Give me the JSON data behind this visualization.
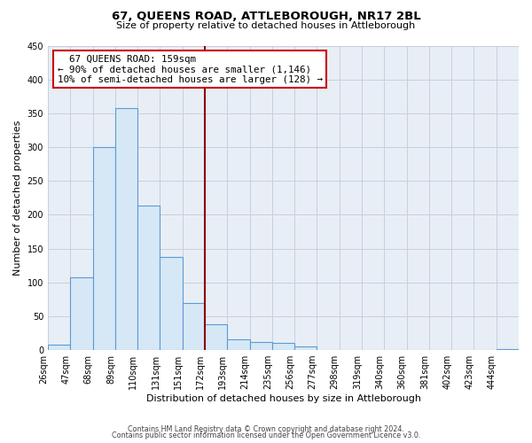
{
  "title": "67, QUEENS ROAD, ATTLEBOROUGH, NR17 2BL",
  "subtitle": "Size of property relative to detached houses in Attleborough",
  "xlabel": "Distribution of detached houses by size in Attleborough",
  "ylabel": "Number of detached properties",
  "footer_line1": "Contains HM Land Registry data © Crown copyright and database right 2024.",
  "footer_line2": "Contains public sector information licensed under the Open Government Licence v3.0.",
  "bin_labels": [
    "26sqm",
    "47sqm",
    "68sqm",
    "89sqm",
    "110sqm",
    "131sqm",
    "151sqm",
    "172sqm",
    "193sqm",
    "214sqm",
    "235sqm",
    "256sqm",
    "277sqm",
    "298sqm",
    "319sqm",
    "340sqm",
    "360sqm",
    "381sqm",
    "402sqm",
    "423sqm",
    "444sqm"
  ],
  "bar_heights": [
    8,
    108,
    300,
    358,
    214,
    138,
    70,
    38,
    16,
    12,
    10,
    5,
    0,
    0,
    0,
    0,
    0,
    0,
    0,
    0,
    2
  ],
  "bar_color": "#d6e8f5",
  "bar_edge_color": "#5b9bd5",
  "background_color": "#e8eef5",
  "vline_x": 7,
  "vline_color": "#8b0000",
  "annotation_title": "67 QUEENS ROAD: 159sqm",
  "annotation_line1": "← 90% of detached houses are smaller (1,146)",
  "annotation_line2": "10% of semi-detached houses are larger (128) →",
  "annotation_box_color": "#ffffff",
  "annotation_box_edgecolor": "#cc0000",
  "ylim": [
    0,
    450
  ],
  "yticks": [
    0,
    50,
    100,
    150,
    200,
    250,
    300,
    350,
    400,
    450
  ],
  "grid_color": "#c8d0dc"
}
